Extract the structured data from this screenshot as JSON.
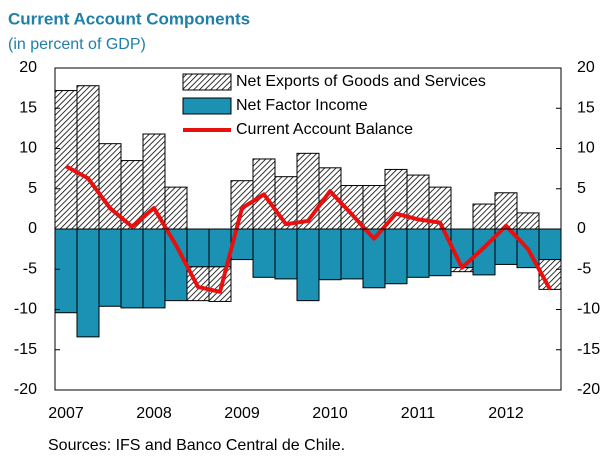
{
  "chart_data": {
    "type": "bar",
    "title": "Current Account Components",
    "subtitle": "(in percent of GDP)",
    "source": "Sources: IFS and Banco Central de Chile.",
    "categories": [
      "2007",
      null,
      null,
      null,
      "2008",
      null,
      null,
      null,
      "2009",
      null,
      null,
      null,
      "2010",
      null,
      null,
      null,
      "2011",
      null,
      null,
      null,
      "2012",
      null,
      null
    ],
    "series": [
      {
        "name": "Net Exports of Goods and Services",
        "color": "#000000",
        "values": [
          17.2,
          17.8,
          10.6,
          8.5,
          11.8,
          5.2,
          -4.2,
          -4.3,
          6.0,
          8.7,
          6.5,
          9.4,
          7.6,
          5.4,
          5.4,
          7.4,
          6.7,
          5.2,
          -0.5,
          3.1,
          4.5,
          2.0,
          -3.7
        ]
      },
      {
        "name": "Net Factor Income",
        "color": "#1b91b3",
        "values": [
          -10.4,
          -13.4,
          -9.6,
          -9.8,
          -9.8,
          -8.9,
          -4.7,
          -4.7,
          -3.8,
          -6.0,
          -6.2,
          -8.9,
          -6.3,
          -6.2,
          -7.3,
          -6.8,
          -6.0,
          -5.8,
          -4.8,
          -5.7,
          -4.4,
          -4.8,
          -3.8
        ]
      },
      {
        "name": "Current Account Balance",
        "color": "#e8100e",
        "type": "line",
        "values": [
          7.8,
          6.3,
          2.6,
          0.3,
          2.6,
          -2.0,
          -7.2,
          -7.8,
          2.6,
          4.3,
          0.6,
          1.0,
          4.7,
          1.8,
          -1.2,
          1.9,
          1.2,
          0.8,
          -4.8,
          -2.3,
          0.4,
          -2.5,
          -7.5
        ]
      }
    ],
    "ylim": [
      -20,
      20
    ],
    "yticks": [
      -20,
      -15,
      -10,
      -5,
      0,
      5,
      10,
      15,
      20
    ],
    "y2lim": [
      -20,
      20
    ],
    "y2ticks": [
      -20,
      -15,
      -10,
      -5,
      0,
      5,
      10,
      15,
      20
    ],
    "grid": false
  }
}
